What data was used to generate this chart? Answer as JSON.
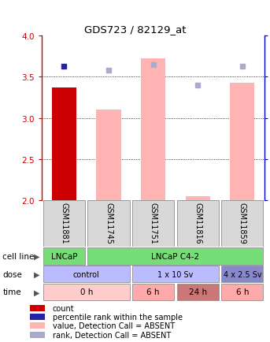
{
  "title": "GDS723 / 82129_at",
  "samples": [
    "GSM11881",
    "GSM11745",
    "GSM11751",
    "GSM11816",
    "GSM11859"
  ],
  "bar_values": [
    3.37,
    3.1,
    3.72,
    2.05,
    3.43
  ],
  "bar_colors": [
    "#cc0000",
    "#ffb3b3",
    "#ffb3b3",
    "#ffb3b3",
    "#ffb3b3"
  ],
  "dot_values": [
    3.63,
    3.58,
    3.65,
    3.4,
    3.63
  ],
  "dot_colors": [
    "#2222aa",
    "#aaaacc",
    "#aaaacc",
    "#aaaacc",
    "#aaaacc"
  ],
  "ylim_left": [
    2.0,
    4.0
  ],
  "ylim_right": [
    0,
    100
  ],
  "yticks_left": [
    2.0,
    2.5,
    3.0,
    3.5,
    4.0
  ],
  "yticks_right": [
    0,
    25,
    50,
    75,
    100
  ],
  "cell_line_cells": [
    {
      "text": "LNCaP",
      "span": 1,
      "color": "#77dd77"
    },
    {
      "text": "LNCaP C4-2",
      "span": 4,
      "color": "#77dd77"
    }
  ],
  "dose_cells": [
    {
      "text": "control",
      "span": 2,
      "color": "#bbbbff"
    },
    {
      "text": "1 x 10 Sv",
      "span": 2,
      "color": "#bbbbff"
    },
    {
      "text": "4 x 2.5 Sv",
      "span": 1,
      "color": "#8888cc"
    }
  ],
  "time_cells": [
    {
      "text": "0 h",
      "span": 2,
      "color": "#ffcccc"
    },
    {
      "text": "6 h",
      "span": 1,
      "color": "#ffaaaa"
    },
    {
      "text": "24 h",
      "span": 1,
      "color": "#cc7777"
    },
    {
      "text": "6 h",
      "span": 1,
      "color": "#ffaaaa"
    }
  ],
  "legend_items": [
    {
      "color": "#cc0000",
      "label": "count"
    },
    {
      "color": "#2222aa",
      "label": "percentile rank within the sample"
    },
    {
      "color": "#ffb3b3",
      "label": "value, Detection Call = ABSENT"
    },
    {
      "color": "#aaaacc",
      "label": "rank, Detection Call = ABSENT"
    }
  ],
  "bar_width": 0.55,
  "background_color": "#ffffff",
  "left_axis_color": "#cc0000",
  "right_axis_color": "#0000cc",
  "grid_color": "#000000"
}
